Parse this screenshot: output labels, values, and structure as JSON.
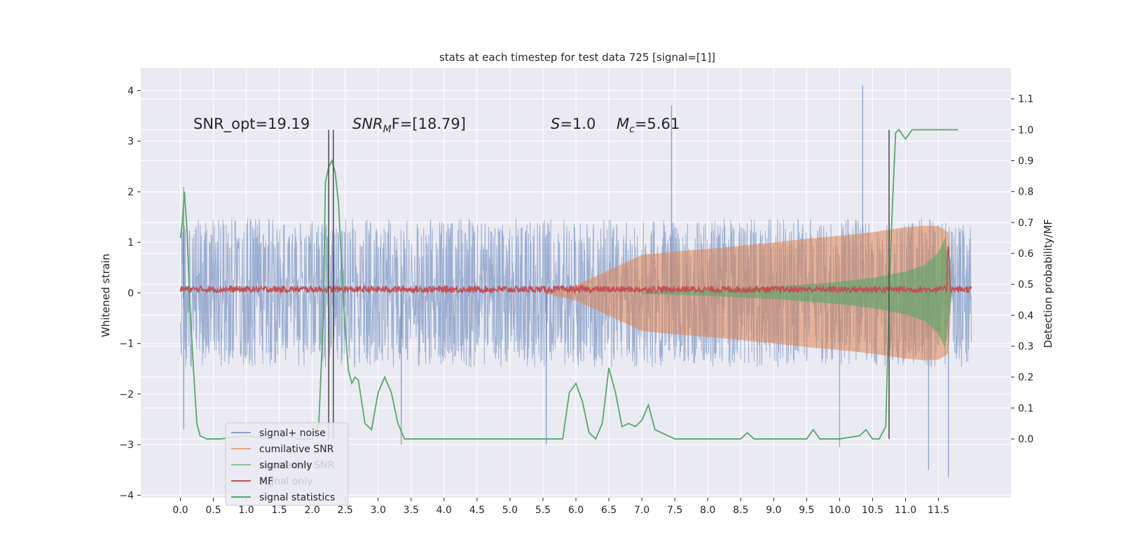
{
  "chart_data": {
    "type": "line",
    "title": "stats at each timestep for test data 725 [signal=[1]]",
    "ylabel": "Whitened strain",
    "ylabel_right": "Detection probability/MF",
    "xlim": [
      -0.6,
      12.6
    ],
    "ylim": [
      -4.05,
      4.45
    ],
    "ylim_right": [
      -0.19,
      1.2
    ],
    "x_ticks": [
      0.0,
      0.5,
      1.0,
      1.5,
      2.0,
      2.5,
      3.0,
      3.5,
      4.0,
      4.5,
      5.0,
      5.5,
      6.0,
      6.5,
      7.0,
      7.5,
      8.0,
      8.5,
      9.0,
      9.5,
      10.0,
      10.5,
      11.0,
      11.5
    ],
    "x_tick_labels": [
      "0.0",
      "0.5",
      "1.0",
      "1.5",
      "2.0",
      "2.5",
      "3.0",
      "3.5",
      "4.0",
      "4.5",
      "5.0",
      "5.5",
      "6.0",
      "6.5",
      "7.0",
      "7.5",
      "8.0",
      "8.5",
      "9.0",
      "9.5",
      "10.0",
      "10.5",
      "11.0",
      "11.5"
    ],
    "y_ticks": [
      4,
      3,
      2,
      1,
      0,
      -1,
      -2,
      -3,
      -4
    ],
    "y_tick_labels": [
      "4",
      "3",
      "2",
      "1",
      "0",
      "−1",
      "−2",
      "−3",
      "−4"
    ],
    "y_right_ticks": [
      1.1,
      1.0,
      0.9,
      0.8,
      0.7,
      0.6,
      0.5,
      0.4,
      0.3,
      0.2,
      0.1,
      0.0
    ],
    "y_right_tick_labels": [
      "1.1",
      "1.0",
      "0.9",
      "0.8",
      "0.7",
      "0.6",
      "0.5",
      "0.4",
      "0.3",
      "0.2",
      "0.1",
      "0.0"
    ],
    "grid": true,
    "legend_position": "lower-left",
    "legend": [
      {
        "label": "signal+ noise",
        "color": "#8da0cb"
      },
      {
        "label": "cumilative SNR",
        "color": "#e1a58c"
      },
      {
        "label": "signal only",
        "color": "#8fc594"
      },
      {
        "label": "MF",
        "color": "#c44e52"
      },
      {
        "label": "signal statistics",
        "color": "#55a868"
      }
    ],
    "ghost_legend": [
      "cumilative SNR",
      "signal only"
    ],
    "annotations": [
      {
        "prefix": "SNR_opt=19.19",
        "italic": "",
        "sub": "",
        "suffix": ""
      },
      {
        "prefix": "",
        "italic": "SNR",
        "sub": "M",
        "suffix": "F=[18.79]"
      },
      {
        "prefix": "",
        "italic": "S",
        "sub": "",
        "suffix": "=1.0"
      },
      {
        "prefix": "",
        "italic": "M",
        "sub": "c",
        "suffix": "=5.61"
      }
    ],
    "vertical_lines_x": [
      2.25,
      2.32,
      10.75
    ],
    "series": [
      {
        "name": "signal+ noise",
        "color": "#4c72b0",
        "description": "whitened strain noise ~ amplitude 1.4 core, peaks to 4.1, x from 0.0 to 12.0",
        "x_range": [
          0.0,
          12.0
        ],
        "envelope_core": 1.4,
        "extremes": [
          [
            0.05,
            2.1
          ],
          [
            0.05,
            -2.7
          ],
          [
            3.35,
            -3.0
          ],
          [
            7.45,
            3.7
          ],
          [
            10.35,
            4.1
          ],
          [
            11.35,
            -3.5
          ],
          [
            11.65,
            -3.65
          ],
          [
            10.0,
            -3.05
          ],
          [
            5.55,
            -3.0
          ]
        ]
      },
      {
        "name": "cumilative SNR",
        "color": "#dd8452",
        "description": "growing chirp envelope",
        "envelope_x": [
          5.5,
          6.0,
          6.5,
          7.0,
          7.5,
          8.0,
          8.5,
          9.0,
          9.5,
          10.0,
          10.5,
          11.0,
          11.3,
          11.5,
          11.65,
          11.7
        ],
        "envelope_y": [
          0.0,
          0.15,
          0.45,
          0.75,
          0.82,
          0.87,
          0.93,
          1.0,
          1.07,
          1.13,
          1.2,
          1.3,
          1.33,
          1.32,
          1.2,
          0.0
        ]
      },
      {
        "name": "signal only",
        "color": "#55a868",
        "description": "inner chirp envelope",
        "envelope_x": [
          7.0,
          8.0,
          9.0,
          10.0,
          10.5,
          11.0,
          11.3,
          11.5,
          11.6,
          11.7
        ],
        "envelope_y": [
          0.02,
          0.06,
          0.12,
          0.22,
          0.3,
          0.42,
          0.56,
          0.8,
          1.1,
          0.0
        ]
      },
      {
        "name": "MF",
        "color": "#c44e52",
        "description": "matched filter output, near 0.07 with spike",
        "x_range": [
          0.0,
          12.0
        ],
        "baseline": 0.07,
        "spike": [
          11.65,
          1.0
        ]
      },
      {
        "name": "signal statistics",
        "color": "#55a868",
        "x": [
          0.0,
          0.03,
          0.06,
          0.1,
          0.14,
          0.2,
          0.25,
          0.3,
          0.4,
          0.6,
          1.0,
          1.4,
          1.6,
          1.8,
          2.0,
          2.1,
          2.17,
          2.2,
          2.25,
          2.3,
          2.35,
          2.4,
          2.45,
          2.5,
          2.55,
          2.6,
          2.65,
          2.7,
          2.8,
          2.9,
          3.0,
          3.1,
          3.2,
          3.3,
          3.4,
          3.5,
          3.6,
          4.0,
          4.5,
          5.0,
          5.5,
          5.8,
          5.9,
          6.0,
          6.1,
          6.2,
          6.3,
          6.4,
          6.5,
          6.6,
          6.7,
          6.8,
          6.9,
          7.0,
          7.1,
          7.2,
          7.5,
          8.0,
          8.5,
          8.6,
          8.7,
          8.8,
          9.0,
          9.5,
          9.6,
          9.7,
          10.0,
          10.3,
          10.4,
          10.5,
          10.6,
          10.7,
          10.75,
          10.8,
          10.85,
          10.9,
          11.0,
          11.1,
          11.3,
          11.5,
          11.7,
          11.8
        ],
        "y": [
          0.65,
          0.7,
          0.8,
          0.68,
          0.45,
          0.22,
          0.05,
          0.01,
          0.0,
          0.0,
          0.01,
          0.0,
          0.01,
          0.0,
          0.0,
          0.05,
          0.4,
          0.83,
          0.88,
          0.9,
          0.86,
          0.76,
          0.55,
          0.35,
          0.22,
          0.18,
          0.2,
          0.19,
          0.05,
          0.03,
          0.15,
          0.2,
          0.15,
          0.05,
          0.0,
          0.0,
          0.0,
          0.0,
          0.0,
          0.0,
          0.0,
          0.0,
          0.15,
          0.18,
          0.12,
          0.02,
          0.0,
          0.05,
          0.23,
          0.15,
          0.04,
          0.05,
          0.04,
          0.06,
          0.11,
          0.03,
          0.0,
          0.0,
          0.0,
          0.02,
          0.0,
          0.0,
          0.0,
          0.0,
          0.03,
          0.0,
          0.0,
          0.01,
          0.03,
          0.0,
          0.0,
          0.04,
          0.45,
          0.75,
          0.99,
          1.0,
          0.97,
          1.0,
          1.0,
          1.0,
          1.0,
          1.0
        ]
      }
    ]
  }
}
